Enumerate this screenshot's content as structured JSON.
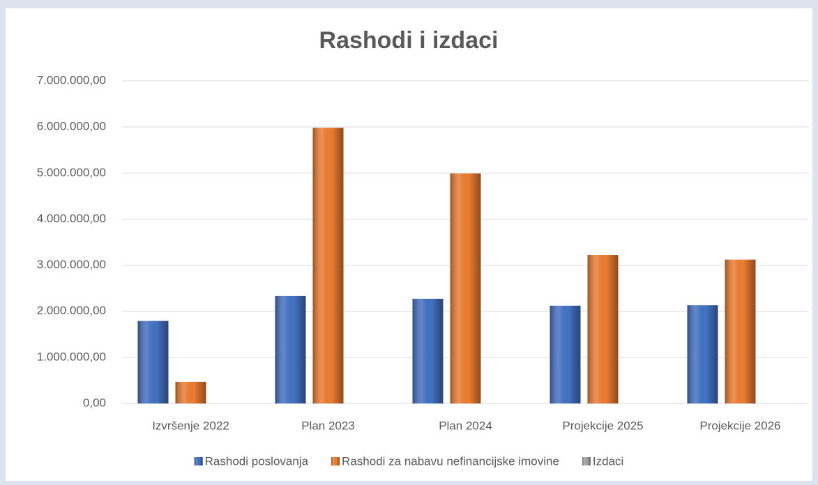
{
  "chart_data": {
    "type": "bar",
    "title": "Rashodi i izdaci",
    "categories": [
      "Izvršenje 2022",
      "Plan 2023",
      "Plan 2024",
      "Projekcije 2025",
      "Projekcije 2026"
    ],
    "series": [
      {
        "name": "Rashodi poslovanja",
        "color": "#4472c4",
        "values": [
          1790000,
          2330000,
          2270000,
          2120000,
          2130000
        ]
      },
      {
        "name": "Rashodi za nabavu nefinancijske imovine",
        "color": "#ed7d31",
        "values": [
          470000,
          5980000,
          4990000,
          3220000,
          3120000
        ]
      },
      {
        "name": "Izdaci",
        "color": "#a5a5a5",
        "values": [
          0,
          0,
          0,
          0,
          0
        ]
      }
    ],
    "ylim": [
      0,
      7000000
    ],
    "yticks": [
      {
        "value": 0,
        "label": "0,00"
      },
      {
        "value": 1000000,
        "label": "1.000.000,00"
      },
      {
        "value": 2000000,
        "label": "2.000.000,00"
      },
      {
        "value": 3000000,
        "label": "3.000.000,00"
      },
      {
        "value": 4000000,
        "label": "4.000.000,00"
      },
      {
        "value": 5000000,
        "label": "5.000.000,00"
      },
      {
        "value": 6000000,
        "label": "6.000.000,00"
      },
      {
        "value": 7000000,
        "label": "7.000.000,00"
      }
    ],
    "grid": true,
    "legend": "bottom"
  }
}
